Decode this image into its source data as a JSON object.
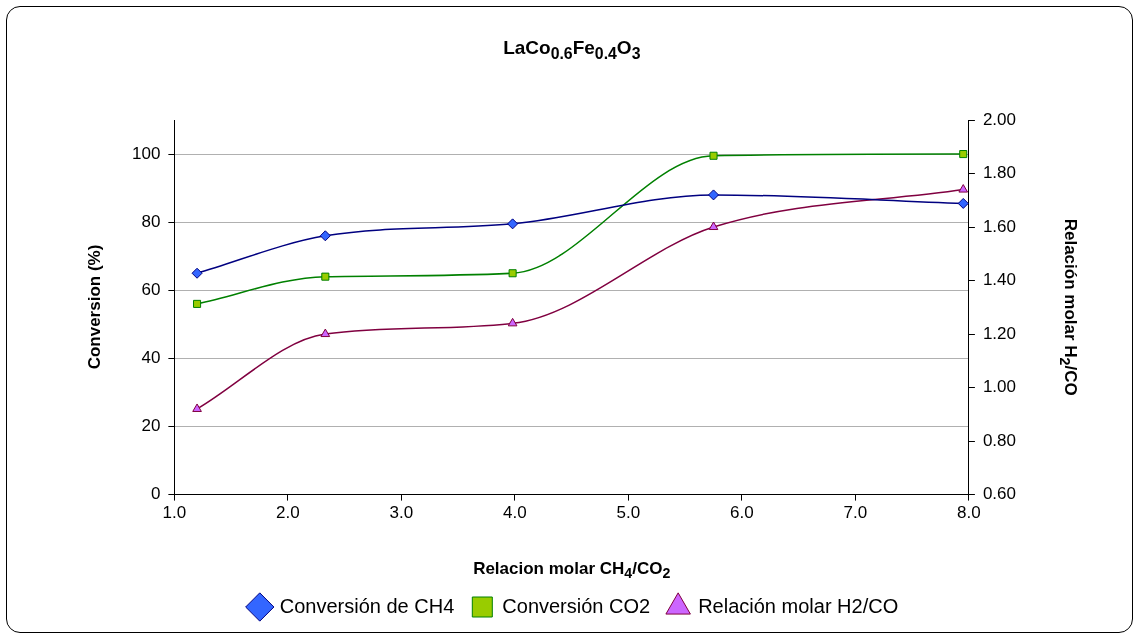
{
  "chart_data": {
    "type": "line",
    "title": "LaCo$_{0.6}$Fe$_{0.4}$O$_{3}$",
    "xlabel": "Relacion molar CH$_{4}$/CO$_{2}$",
    "ylabel": "Conversion (%)",
    "y2label": "Relación molar H$_{2}$/CO",
    "x": [
      1.2,
      2.33,
      3.98,
      5.75,
      7.95
    ],
    "series": [
      {
        "name": "Conversión de CH4",
        "color": "#000080",
        "colors": [
          "#3366ff",
          "#3366ff",
          "#3366ff",
          "#3366ff",
          "#3366ff"
        ],
        "marker": "diamond",
        "values": [
          65,
          76,
          79.5,
          88,
          85.5
        ]
      },
      {
        "name": "Conversión CO2",
        "color": "#008000",
        "colors": [
          "#99cc00",
          "#99cc00",
          "#99cc00",
          "#99cc00",
          "#99cc00"
        ],
        "marker": "square",
        "values": [
          56,
          64,
          65,
          99.5,
          100
        ]
      },
      {
        "name": "Relación molar H2/CO",
        "color": "#800040",
        "colors": [
          "#cc66ff",
          "#cc66ff",
          "#cc66ff",
          "#cc66ff",
          "#cc66ff"
        ],
        "marker": "triangle",
        "axis": "y2",
        "values": [
          0.92,
          1.2,
          1.24,
          1.6,
          1.74
        ]
      }
    ],
    "xlim": [
      1,
      8
    ],
    "xticks": [
      {
        "value": 1,
        "label": "1.0"
      },
      {
        "value": 2,
        "label": "2.0"
      },
      {
        "value": 3,
        "label": "3.0"
      },
      {
        "value": 4,
        "label": "4.0"
      },
      {
        "value": 5,
        "label": "5.0"
      },
      {
        "value": 6,
        "label": "6.0"
      },
      {
        "value": 7,
        "label": "7.0"
      },
      {
        "value": 8,
        "label": "8.0"
      }
    ],
    "ylim": [
      0,
      110
    ],
    "yticks": [
      0,
      20,
      40,
      60,
      80,
      100
    ],
    "y2lim": [
      0.6,
      2
    ],
    "y2ticks": [
      {
        "value": 0.6,
        "label": "0.60"
      },
      {
        "value": 0.8,
        "label": "0.80"
      },
      {
        "value": 1,
        "label": "1.00"
      },
      {
        "value": 1.2,
        "label": "1.20"
      },
      {
        "value": 1.4,
        "label": "1.40"
      },
      {
        "value": 1.6,
        "label": "1.60"
      },
      {
        "value": 1.8,
        "label": "1.80"
      },
      {
        "value": 2,
        "label": "2.00"
      }
    ],
    "grid": "y",
    "legend": "bottom",
    "line_style": "solid"
  }
}
